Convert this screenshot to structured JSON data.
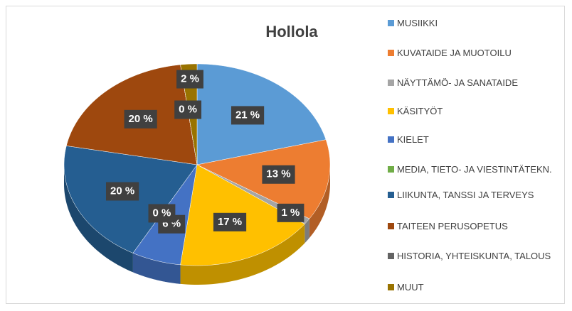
{
  "chart_data": {
    "type": "pie",
    "title": "Hollola",
    "categories": [
      "MUSIIKKI",
      "KUVATAIDE JA MUOTOILU",
      "NÄYTTÄMÖ- JA SANATAIDE",
      "KÄSITYÖT",
      "KIELET",
      "MEDIA, TIETO- JA VIESTINTÄTEKN.",
      "LIIKUNTA, TANSSI JA TERVEYS",
      "TAITEEN PERUSOPETUS",
      "HISTORIA, YHTEISKUNTA, TALOUS",
      "MUUT"
    ],
    "values": [
      21,
      13,
      1,
      17,
      6,
      0,
      20,
      20,
      0,
      2
    ],
    "value_labels": [
      "21 %",
      "13 %",
      "1 %",
      "17 %",
      "6 %",
      "0 %",
      "20 %",
      "20 %",
      "0 %",
      "2 %"
    ],
    "colors": [
      "#5b9bd5",
      "#ed7d31",
      "#a5a5a5",
      "#ffc000",
      "#4472c4",
      "#70ad47",
      "#255e91",
      "#9e480e",
      "#636363",
      "#997300"
    ]
  }
}
